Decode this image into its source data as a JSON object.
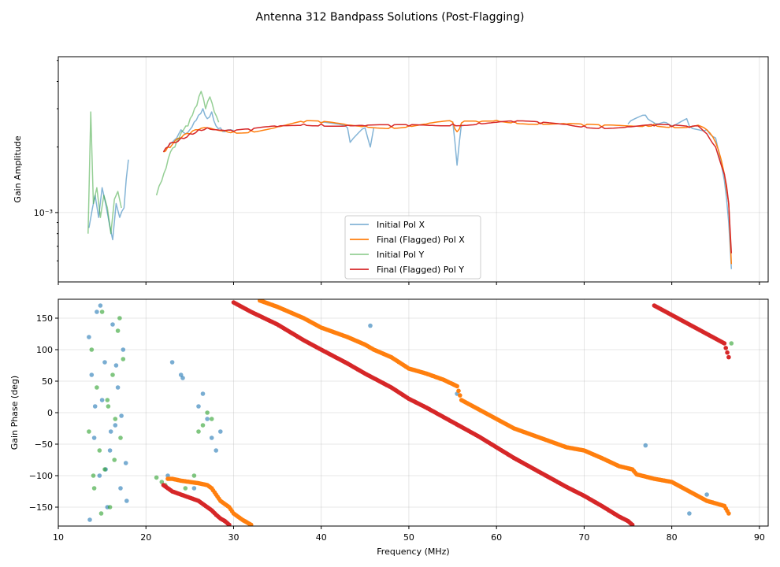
{
  "figure_title": "Antenna 312 Bandpass Solutions (Post-Flagging)",
  "colors": {
    "pol_x_initial": "#1f77b4",
    "pol_x_final": "#ff7f0e",
    "pol_y_initial": "#2ca02c",
    "pol_y_final": "#d62728"
  },
  "chart_data": [
    {
      "type": "line",
      "panel": "amplitude",
      "ylabel": "Gain Amplitude",
      "y_scale": "log",
      "ylim": [
        0.00048,
        0.0052
      ],
      "xlim": [
        10,
        91
      ],
      "y_tick_label": "10⁻³",
      "y_tick_base": "10",
      "y_tick_exp": "−3",
      "y_tick_value": 0.001,
      "grid": true,
      "legend_position": "lower-center",
      "series": [
        {
          "name": "Initial Pol X",
          "color": "#1f77b4",
          "alpha": 0.55,
          "x": [
            13.5,
            13.9,
            14.2,
            14.6,
            15.0,
            15.4,
            15.8,
            16.2,
            16.6,
            17.0,
            17.5,
            18.0,
            22.0,
            22.5,
            23.0,
            23.5,
            24.0,
            24.5,
            25.0,
            25.5,
            26.0,
            26.5,
            27.0,
            27.5,
            28.0,
            28.5,
            29.0,
            30,
            35,
            40,
            43,
            43.3,
            45,
            45.6,
            46,
            50,
            55,
            55.5,
            56,
            60,
            65,
            70,
            75,
            77,
            77.5,
            80,
            81.7,
            82,
            84,
            85,
            86,
            86.5,
            86.8
          ],
          "y": [
            0.00085,
            0.00105,
            0.0012,
            0.00095,
            0.0013,
            0.0011,
            0.0009,
            0.00075,
            0.0011,
            0.00095,
            0.00105,
            0.00175,
            0.0019,
            0.002,
            0.0021,
            0.0022,
            0.0024,
            0.0023,
            0.0024,
            0.0026,
            0.0028,
            0.003,
            0.0027,
            0.0029,
            0.0025,
            0.00245,
            0.00235,
            0.00238,
            0.0025,
            0.0026,
            0.00245,
            0.0021,
            0.00245,
            0.002,
            0.00245,
            0.0025,
            0.00262,
            0.00165,
            0.00255,
            0.00265,
            0.00258,
            0.00252,
            0.00255,
            0.0028,
            0.00265,
            0.0025,
            0.0027,
            0.0025,
            0.0024,
            0.0022,
            0.0014,
            0.0009,
            0.00055
          ]
        },
        {
          "name": "Final (Flagged) Pol X",
          "color": "#ff7f0e",
          "alpha": 1.0,
          "x": [
            22.0,
            22.5,
            23.0,
            24.0,
            25.0,
            26.0,
            27.0,
            28.0,
            29.0,
            30.0,
            32.0,
            35.0,
            38.0,
            40.0,
            43.0,
            45.0,
            48.0,
            50.0,
            52.0,
            55.0,
            55.5,
            56.0,
            58.0,
            60.0,
            62.0,
            65.0,
            68.0,
            70.0,
            72.0,
            75.0,
            77.0,
            78.0,
            80.0,
            82.0,
            83.0,
            84.0,
            85.0,
            86.0,
            86.5,
            86.8
          ],
          "y": [
            0.0019,
            0.002,
            0.00205,
            0.0022,
            0.0023,
            0.0024,
            0.00245,
            0.0024,
            0.00238,
            0.00235,
            0.00238,
            0.00248,
            0.0026,
            0.00258,
            0.00252,
            0.0025,
            0.00248,
            0.0025,
            0.00255,
            0.0026,
            0.00235,
            0.00258,
            0.0026,
            0.00265,
            0.00262,
            0.00258,
            0.00255,
            0.0025,
            0.00248,
            0.0025,
            0.00252,
            0.00255,
            0.0025,
            0.00248,
            0.00252,
            0.0024,
            0.0021,
            0.0015,
            0.0011,
            0.00058
          ]
        },
        {
          "name": "Initial Pol Y",
          "color": "#2ca02c",
          "alpha": 0.5,
          "x": [
            13.4,
            13.7,
            14.0,
            14.4,
            14.8,
            15.2,
            15.6,
            16.0,
            16.4,
            16.8,
            17.2,
            21.2,
            21.8,
            22.3,
            22.8,
            23.3,
            23.8,
            24.3,
            24.8,
            25.3,
            25.8,
            26.3,
            26.8,
            27.3,
            27.8,
            28.3
          ],
          "y": [
            0.0008,
            0.0029,
            0.0011,
            0.0013,
            0.00095,
            0.0012,
            0.00105,
            0.0008,
            0.00115,
            0.00125,
            0.00105,
            0.0012,
            0.0014,
            0.0016,
            0.0019,
            0.002,
            0.0022,
            0.0024,
            0.0025,
            0.0028,
            0.0031,
            0.0036,
            0.003,
            0.0034,
            0.0029,
            0.0026
          ]
        },
        {
          "name": "Final (Flagged) Pol Y",
          "color": "#d62728",
          "alpha": 1.0,
          "x": [
            22.0,
            22.5,
            23.0,
            24.0,
            25.0,
            26.0,
            27.0,
            28.0,
            29.0,
            30.0,
            32.0,
            35.0,
            38.0,
            40.0,
            43.0,
            45.0,
            48.0,
            50.0,
            52.0,
            55.0,
            58.0,
            60.0,
            62.0,
            65.0,
            68.0,
            70.0,
            72.0,
            75.0,
            78.0,
            80.0,
            82.0,
            83.0,
            84.0,
            85.0,
            86.0,
            86.5,
            86.8
          ],
          "y": [
            0.0019,
            0.002,
            0.0021,
            0.0022,
            0.0023,
            0.0024,
            0.00245,
            0.0024,
            0.00238,
            0.00236,
            0.00238,
            0.00248,
            0.00255,
            0.00255,
            0.00252,
            0.0025,
            0.00248,
            0.0025,
            0.00252,
            0.00255,
            0.00258,
            0.0026,
            0.0026,
            0.00256,
            0.00254,
            0.0025,
            0.00248,
            0.00248,
            0.0025,
            0.00248,
            0.00246,
            0.0025,
            0.0023,
            0.002,
            0.0015,
            0.0011,
            0.00065
          ]
        }
      ]
    },
    {
      "type": "scatter",
      "panel": "phase",
      "ylabel": "Gain Phase (deg)",
      "xlabel": "Frequency (MHz)",
      "ylim": [
        -180,
        180
      ],
      "xlim": [
        10,
        91
      ],
      "y_ticks": [
        -150,
        -100,
        -50,
        0,
        50,
        100,
        150
      ],
      "x_ticks": [
        10,
        20,
        30,
        40,
        50,
        60,
        70,
        80,
        90
      ],
      "grid": true,
      "series": [
        {
          "name": "Initial Pol X",
          "color": "#1f77b4",
          "x": [
            13.5,
            13.8,
            14.1,
            14.4,
            14.7,
            15.0,
            15.3,
            15.6,
            15.9,
            16.2,
            16.5,
            16.8,
            17.1,
            17.4,
            17.7,
            13.6,
            14.2,
            14.8,
            15.4,
            16.0,
            16.6,
            17.2,
            17.8,
            22.5,
            23.0,
            24.0,
            24.2,
            25.5,
            26.0,
            26.5,
            27.0,
            27.5,
            28.0,
            28.5,
            43.0,
            45.6,
            55.5,
            77.0,
            82.0,
            84.0
          ],
          "y": [
            120,
            60,
            -40,
            160,
            -100,
            20,
            80,
            -150,
            -60,
            140,
            -20,
            40,
            -120,
            100,
            -80,
            -170,
            10,
            170,
            -90,
            -30,
            75,
            -5,
            -140,
            -100,
            80,
            60,
            55,
            -120,
            10,
            30,
            -10,
            -40,
            -60,
            -30,
            120,
            138,
            30,
            -52,
            -160,
            -130
          ]
        },
        {
          "name": "Final (Flagged) Pol X",
          "color": "#ff7f0e",
          "x": [
            22.5,
            23.0,
            24.0,
            25.0,
            26.0,
            27.0,
            27.5,
            28.0,
            28.5,
            29.0,
            29.5,
            30.0,
            31.0,
            32.0,
            33.0,
            35.0,
            38.0,
            40.0,
            43.0,
            45.0,
            46.0,
            48.0,
            50.0,
            52.0,
            54.0,
            55.5,
            56.0,
            58.0,
            60.0,
            62.0,
            65.0,
            68.0,
            70.0,
            72.0,
            74.0,
            75.5,
            76.0,
            78.0,
            80.0,
            82.0,
            84.0,
            86.0,
            86.5
          ],
          "y": [
            -105,
            -105,
            -108,
            -110,
            -112,
            -115,
            -120,
            -130,
            -140,
            -145,
            -150,
            -160,
            -170,
            -178,
            178,
            168,
            150,
            135,
            120,
            108,
            100,
            88,
            70,
            62,
            52,
            42,
            20,
            5,
            -10,
            -25,
            -40,
            -55,
            -60,
            -72,
            -85,
            -90,
            -98,
            -105,
            -110,
            -125,
            -140,
            -148,
            -160
          ]
        },
        {
          "name": "Initial Pol Y",
          "color": "#2ca02c",
          "x": [
            13.5,
            13.8,
            14.1,
            14.4,
            14.7,
            15.0,
            15.3,
            15.6,
            15.9,
            16.2,
            16.5,
            16.8,
            17.1,
            17.4,
            14.0,
            14.9,
            15.7,
            16.4,
            17.0,
            21.2,
            21.8,
            22.2,
            24.5,
            25.5,
            26.0,
            26.5,
            27.0,
            27.5,
            86.8
          ],
          "y": [
            -30,
            100,
            -120,
            40,
            -60,
            160,
            -90,
            20,
            -150,
            60,
            -10,
            130,
            -40,
            85,
            -100,
            -160,
            10,
            -75,
            150,
            -103,
            -110,
            -115,
            -120,
            -100,
            -30,
            -20,
            0,
            -10,
            110
          ]
        },
        {
          "name": "Final (Flagged) Pol Y",
          "color": "#d62728",
          "x": [
            22.0,
            23.0,
            24.0,
            25.0,
            26.0,
            27.0,
            27.5,
            28.0,
            28.5,
            29.0,
            29.5,
            30.0,
            32.0,
            35.0,
            38.0,
            40.0,
            43.0,
            45.0,
            48.0,
            50.0,
            52.0,
            55.0,
            58.0,
            60.0,
            62.0,
            65.0,
            68.0,
            70.0,
            72.0,
            74.0,
            75.0,
            75.5,
            78.0,
            80.0,
            82.0,
            84.0,
            86.0,
            86.5
          ],
          "y": [
            -115,
            -125,
            -130,
            -135,
            -140,
            -150,
            -155,
            -162,
            -168,
            -172,
            -178,
            175,
            160,
            140,
            115,
            100,
            78,
            62,
            40,
            22,
            8,
            -15,
            -38,
            -55,
            -72,
            -95,
            -118,
            -132,
            -148,
            -165,
            -172,
            -178,
            170,
            155,
            140,
            125,
            110,
            88
          ]
        }
      ]
    }
  ]
}
